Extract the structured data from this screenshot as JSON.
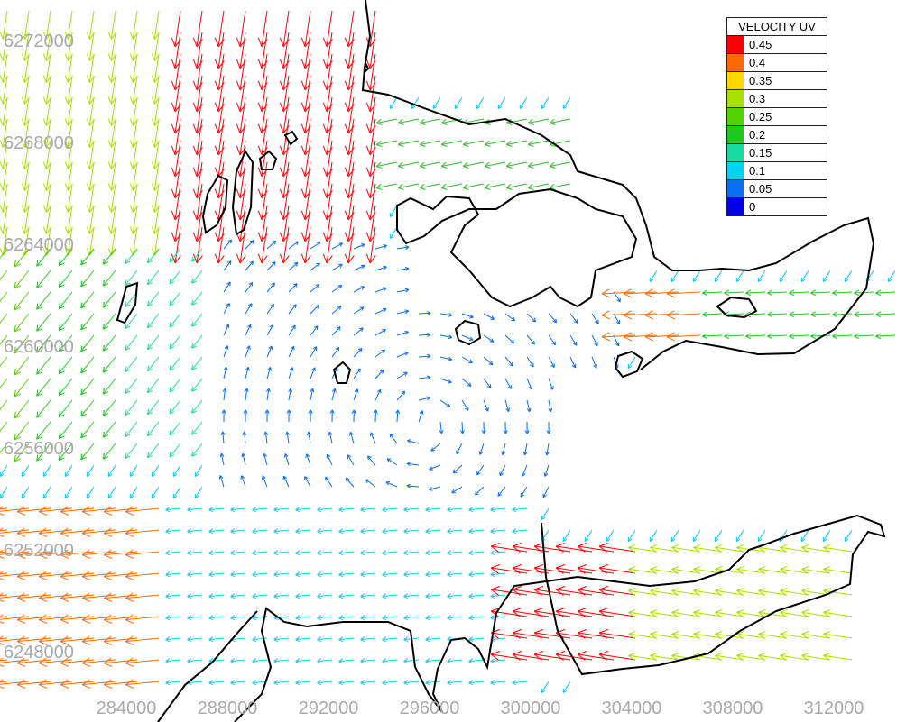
{
  "legend": {
    "title": "VELOCITY UV",
    "entries": [
      {
        "label": "0.45",
        "color": "#ff0000"
      },
      {
        "label": "0.4",
        "color": "#ff6a00"
      },
      {
        "label": "0.35",
        "color": "#ffd700"
      },
      {
        "label": "0.3",
        "color": "#a8e000"
      },
      {
        "label": "0.25",
        "color": "#55d000"
      },
      {
        "label": "0.2",
        "color": "#1ec81e"
      },
      {
        "label": "0.15",
        "color": "#16dca0"
      },
      {
        "label": "0.1",
        "color": "#00d2f0"
      },
      {
        "label": "0.05",
        "color": "#0a6ef0"
      },
      {
        "label": "0",
        "color": "#0000e6"
      }
    ]
  },
  "y_ticks": [
    "6272000",
    "6268000",
    "6264000",
    "6260000",
    "6256000",
    "6252000",
    "6248000"
  ],
  "x_ticks": [
    "284000",
    "288000",
    "292000",
    "296000",
    "300000",
    "304000",
    "308000",
    "312000"
  ],
  "colors": {
    "coastline": "#000000",
    "tick_label": "#a9a9a9"
  }
}
